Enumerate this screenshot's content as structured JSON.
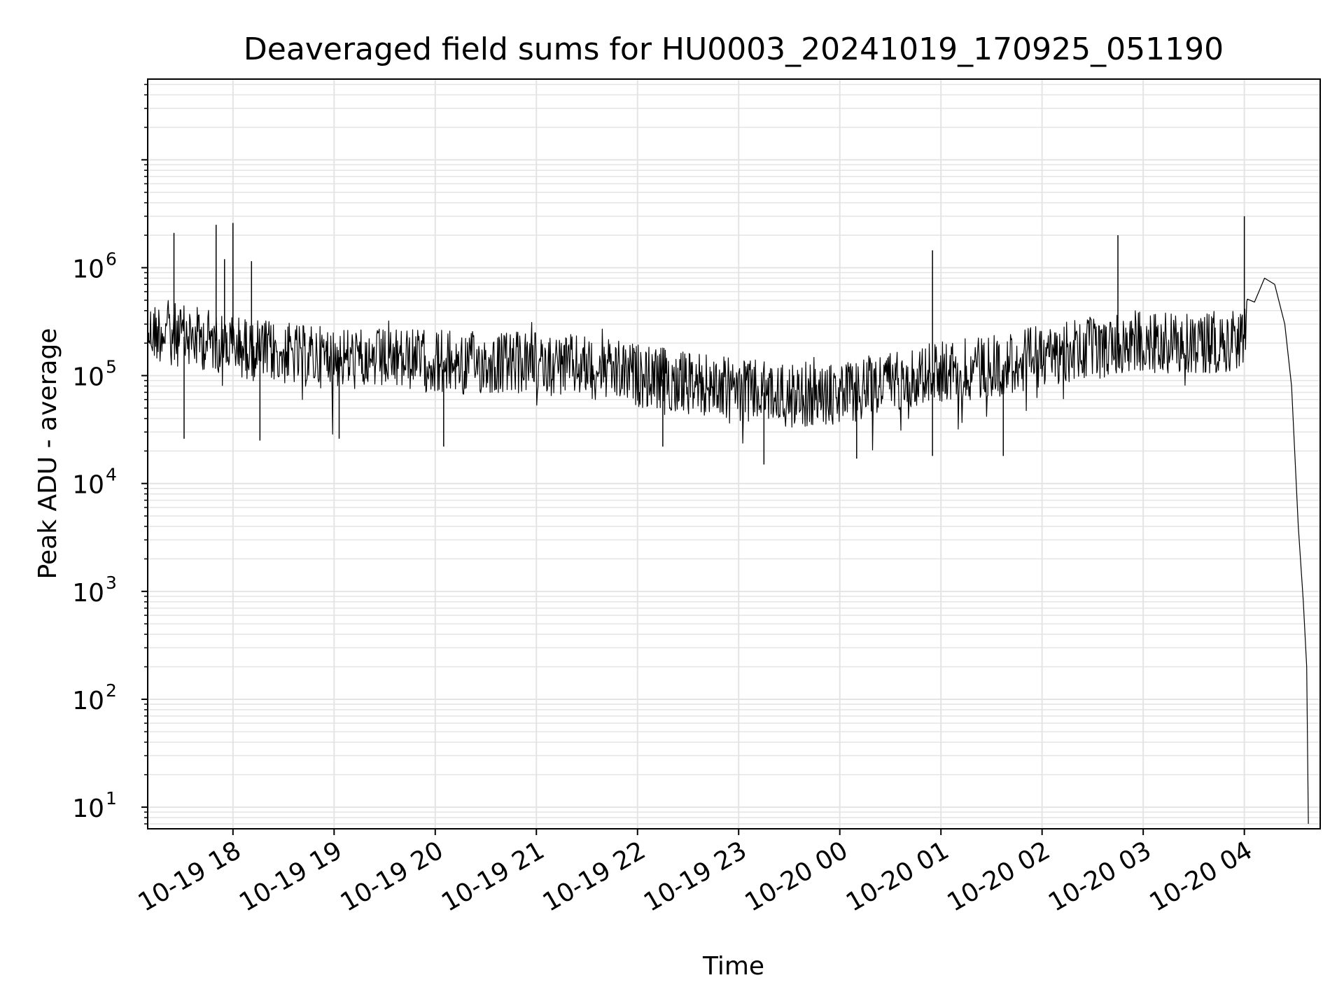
{
  "chart_data": {
    "type": "line",
    "title": "Deaveraged field sums for HU0003_20241019_170925_051190",
    "xlabel": "Time",
    "ylabel": "Peak ADU - average",
    "y_scale": "log",
    "ylim": [
      6.3,
      56000000
    ],
    "xlim": [
      "2024-10-19T17:09:25",
      "2024-10-20T04:45:00"
    ],
    "x_tick_labels": [
      "10-19 18",
      "10-19 19",
      "10-19 20",
      "10-19 21",
      "10-19 22",
      "10-19 23",
      "10-20 00",
      "10-20 01",
      "10-20 02",
      "10-20 03",
      "10-20 04"
    ],
    "x_tick_values": [
      "2024-10-19T18:00",
      "2024-10-19T19:00",
      "2024-10-19T20:00",
      "2024-10-19T21:00",
      "2024-10-19T22:00",
      "2024-10-19T23:00",
      "2024-10-20T00:00",
      "2024-10-20T01:00",
      "2024-10-20T02:00",
      "2024-10-20T03:00",
      "2024-10-20T04:00"
    ],
    "y_tick_labels": [
      {
        "base": "10",
        "exp": "1",
        "value": 10
      },
      {
        "base": "10",
        "exp": "2",
        "value": 100
      },
      {
        "base": "10",
        "exp": "3",
        "value": 1000
      },
      {
        "base": "10",
        "exp": "4",
        "value": 10000
      },
      {
        "base": "10",
        "exp": "5",
        "value": 100000
      },
      {
        "base": "10",
        "exp": "6",
        "value": 1000000
      }
    ],
    "grid": true,
    "line_color": "#000000",
    "grid_color": "#e4e4e4",
    "series": [
      {
        "values": [
          [
            "2024-10-19T17:10",
            250000
          ],
          [
            "2024-10-19T17:20",
            260000
          ],
          [
            "2024-10-19T17:30",
            230000
          ],
          [
            "2024-10-19T17:40",
            220000
          ],
          [
            "2024-10-19T17:50",
            210000
          ],
          [
            "2024-10-19T18:00",
            190000
          ],
          [
            "2024-10-19T18:15",
            170000
          ],
          [
            "2024-10-19T18:30",
            160000
          ],
          [
            "2024-10-19T18:45",
            150000
          ],
          [
            "2024-10-19T19:00",
            150000
          ],
          [
            "2024-10-19T19:15",
            140000
          ],
          [
            "2024-10-19T19:30",
            140000
          ],
          [
            "2024-10-19T19:45",
            140000
          ],
          [
            "2024-10-19T20:00",
            135000
          ],
          [
            "2024-10-19T20:30",
            130000
          ],
          [
            "2024-10-19T21:00",
            130000
          ],
          [
            "2024-10-19T21:30",
            120000
          ],
          [
            "2024-10-19T22:00",
            100000
          ],
          [
            "2024-10-19T22:30",
            85000
          ],
          [
            "2024-10-19T23:00",
            75000
          ],
          [
            "2024-10-19T23:30",
            65000
          ],
          [
            "2024-10-20T00:00",
            65000
          ],
          [
            "2024-10-20T00:30",
            90000
          ],
          [
            "2024-10-20T01:00",
            110000
          ],
          [
            "2024-10-20T01:30",
            120000
          ],
          [
            "2024-10-20T02:00",
            150000
          ],
          [
            "2024-10-20T02:30",
            180000
          ],
          [
            "2024-10-20T03:00",
            210000
          ],
          [
            "2024-10-20T03:30",
            200000
          ],
          [
            "2024-10-20T04:00",
            220000
          ],
          [
            "2024-10-20T04:06",
            480000
          ],
          [
            "2024-10-20T04:12",
            800000
          ],
          [
            "2024-10-20T04:18",
            700000
          ],
          [
            "2024-10-20T04:24",
            300000
          ],
          [
            "2024-10-20T04:28",
            80000
          ],
          [
            "2024-10-20T04:32",
            4000
          ],
          [
            "2024-10-20T04:35",
            800
          ],
          [
            "2024-10-20T04:37",
            200
          ],
          [
            "2024-10-20T04:38",
            7
          ]
        ],
        "spikes": [
          [
            "2024-10-19T17:25",
            2100000
          ],
          [
            "2024-10-19T17:50",
            2500000
          ],
          [
            "2024-10-19T17:55",
            1200000
          ],
          [
            "2024-10-19T18:00",
            2600000
          ],
          [
            "2024-10-19T18:11",
            1150000
          ],
          [
            "2024-10-19T17:31",
            26000
          ],
          [
            "2024-10-19T18:16",
            25000
          ],
          [
            "2024-10-19T19:03",
            26000
          ],
          [
            "2024-10-19T20:05",
            22000
          ],
          [
            "2024-10-19T22:15",
            22000
          ],
          [
            "2024-10-19T23:15",
            15000
          ],
          [
            "2024-10-20T00:10",
            17000
          ],
          [
            "2024-10-20T00:55",
            1450000
          ],
          [
            "2024-10-20T00:55",
            18000
          ],
          [
            "2024-10-20T01:37",
            18000
          ],
          [
            "2024-10-20T02:45",
            2000000
          ],
          [
            "2024-10-20T04:00",
            3000000
          ]
        ]
      }
    ]
  }
}
